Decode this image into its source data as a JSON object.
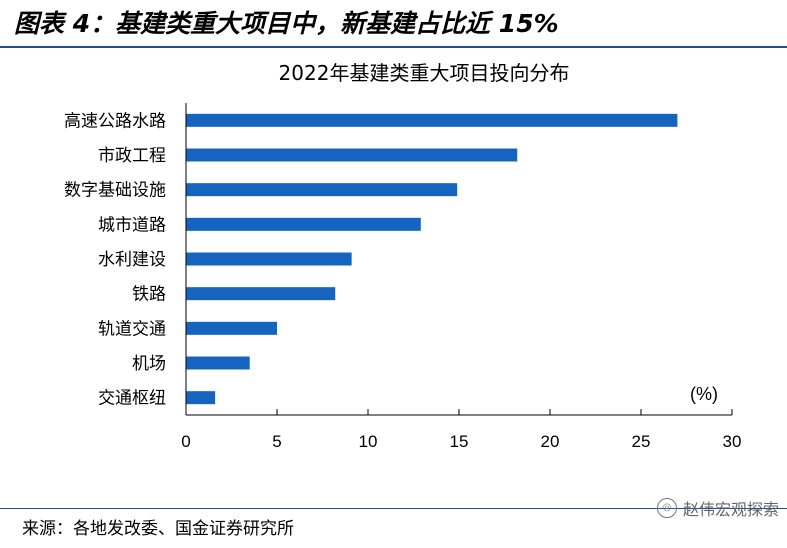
{
  "figure": {
    "title": "图表 4：基建类重大项目中，新基建占比近 15%",
    "source": "来源：各地发改委、国金证券研究所",
    "watermark": "赵伟宏观探索"
  },
  "chart_data": {
    "type": "bar",
    "orientation": "horizontal",
    "title": "2022年基建类重大项目投向分布",
    "unit_label": "(%)",
    "categories": [
      "高速公路水路",
      "市政工程",
      "数字基础设施",
      "城市道路",
      "水利建设",
      "铁路",
      "轨道交通",
      "机场",
      "交通枢纽"
    ],
    "values": [
      27.0,
      18.2,
      14.9,
      12.9,
      9.1,
      8.2,
      5.0,
      3.5,
      1.6
    ],
    "xlim": [
      0,
      30
    ],
    "xticks": [
      "0",
      "5",
      "10",
      "15",
      "20",
      "25",
      "30"
    ],
    "grid": false,
    "bar_color": "#1565c0"
  }
}
